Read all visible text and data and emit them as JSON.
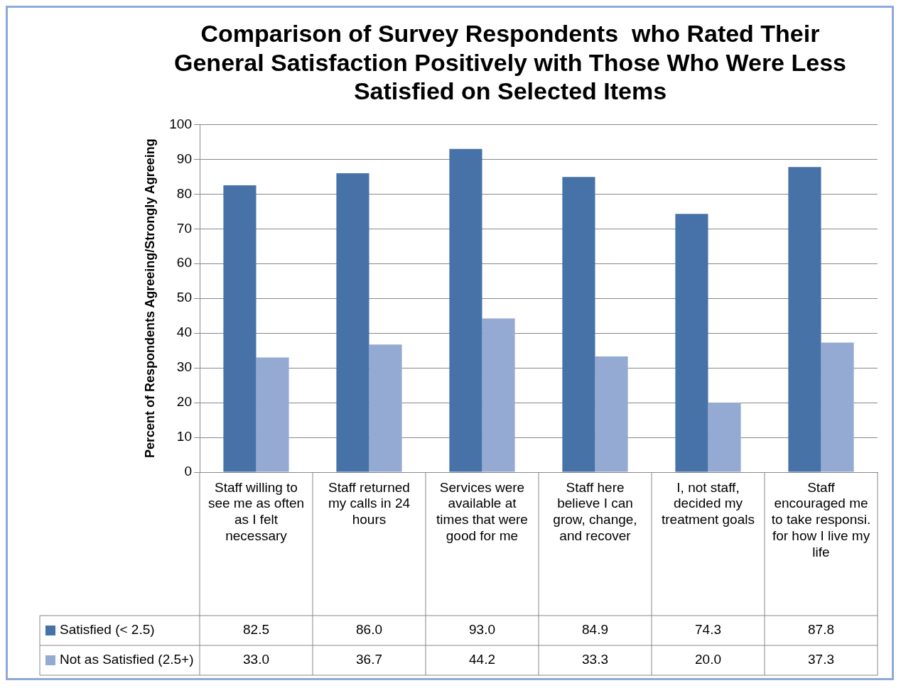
{
  "chart_data": {
    "type": "bar",
    "title": "Comparison of Survey Respondents  who Rated Their General Satisfaction Positively with Those Who Were Less Satisfied on Selected Items",
    "ylabel": "Percent of Respondents Agreeing/Strongly Agreeing",
    "categories": [
      "Staff willing to see me as often as I felt necessary",
      "Staff returned my calls in 24 hours",
      "Services were available at times that were good for me",
      "Staff here believe I can grow, change, and recover",
      "I, not staff, decided my treatment goals",
      "Staff encouraged me to take responsi. for how I live my life"
    ],
    "series": [
      {
        "name": "Satisfied (< 2.5)",
        "color": "#4672a8",
        "values": [
          82.5,
          86.0,
          93.0,
          84.9,
          74.3,
          87.8
        ],
        "value_labels": [
          "82.5",
          "86.0",
          "93.0",
          "84.9",
          "74.3",
          "87.8"
        ]
      },
      {
        "name": "Not as Satisfied (2.5+)",
        "color": "#95aad3",
        "values": [
          33.0,
          36.7,
          44.2,
          33.3,
          20.0,
          37.3
        ],
        "value_labels": [
          "33.0",
          "36.7",
          "44.2",
          "33.3",
          "20.0",
          "37.3"
        ]
      }
    ],
    "ylim": [
      0,
      100
    ],
    "yticks": [
      0,
      10,
      20,
      30,
      40,
      50,
      60,
      70,
      80,
      90,
      100
    ],
    "grid": "y",
    "legend": "bottom"
  }
}
